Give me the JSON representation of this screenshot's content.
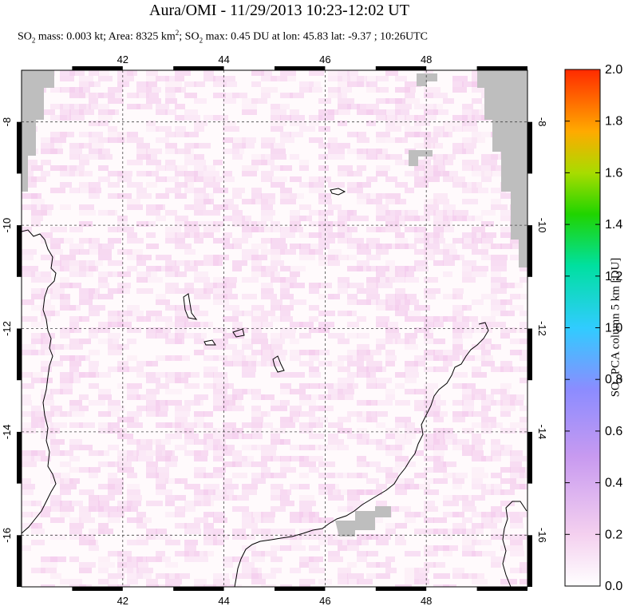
{
  "title": "Aura/OMI - 11/29/2013 10:23-12:02 UT",
  "subtitle": {
    "so2_prefix": "SO",
    "so2_sub": "2",
    "mass_area": " mass: 0.003 kt; Area: 8325 km",
    "area_sup": "2",
    "so2_prefix2": "; SO",
    "so2_sub2": "2",
    "rest": " max: 0.45 DU at lon: 45.83 lat: -9.37 ; 10:26UTC"
  },
  "chart_data": {
    "type": "heatmap",
    "xlim": [
      40,
      50
    ],
    "ylim": [
      -17,
      -7
    ],
    "x_ticks": [
      "42",
      "44",
      "46",
      "48"
    ],
    "y_ticks": [
      "-8",
      "-10",
      "-12",
      "-14",
      "-16"
    ],
    "grid": true,
    "colorbar": {
      "label_prefix": "SO",
      "label_sub": "2",
      "label_rest": " PCA column 5 km [DU]",
      "range": [
        0.0,
        2.0
      ],
      "ticks": [
        "2.0",
        "1.8",
        "1.6",
        "1.4",
        "1.2",
        "1.0",
        "0.8",
        "0.6",
        "0.4",
        "0.2",
        "0.0"
      ],
      "colors": [
        "#ff2a00",
        "#ff7a00",
        "#c8d400",
        "#2ecc00",
        "#00d86a",
        "#00e6c8",
        "#40a8ff",
        "#9a86ff",
        "#d9a0f0",
        "#ffffff"
      ]
    },
    "max_value": 0.45,
    "max_lon": 45.83,
    "max_lat": -9.37,
    "no_data_color": "#bebebe"
  }
}
